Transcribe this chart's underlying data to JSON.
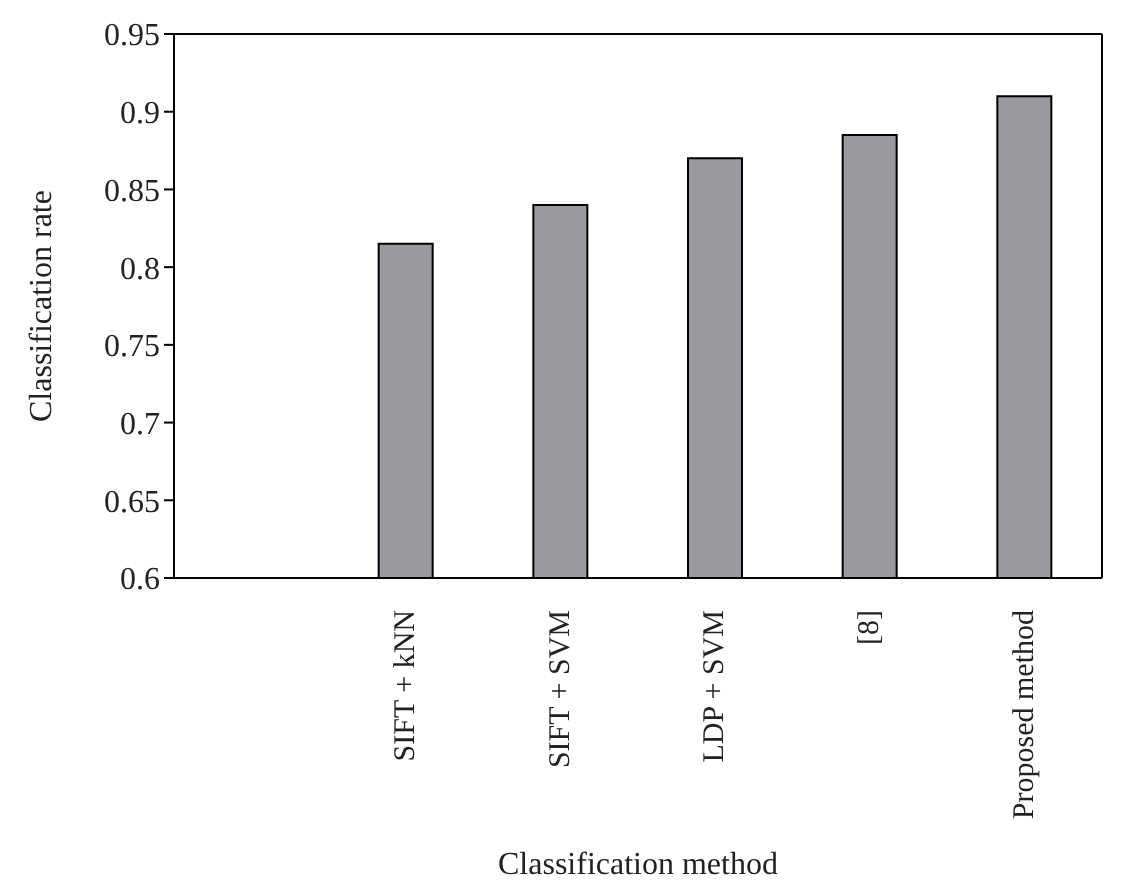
{
  "chart_data": {
    "type": "bar",
    "xlabel": "Classification method",
    "ylabel": "Classification rate",
    "categories": [
      null,
      "SIFT + kNN",
      "SIFT + SVM",
      "LDP + SVM",
      "[8]",
      "Proposed method"
    ],
    "values": [
      null,
      0.815,
      0.84,
      0.87,
      0.885,
      0.91
    ],
    "color": "#999a9e",
    "ylim": [
      0.6,
      0.95
    ],
    "yticks": [
      0.6,
      0.65,
      0.7,
      0.75,
      0.8,
      0.85,
      0.9,
      0.95
    ],
    "grid": false
  }
}
